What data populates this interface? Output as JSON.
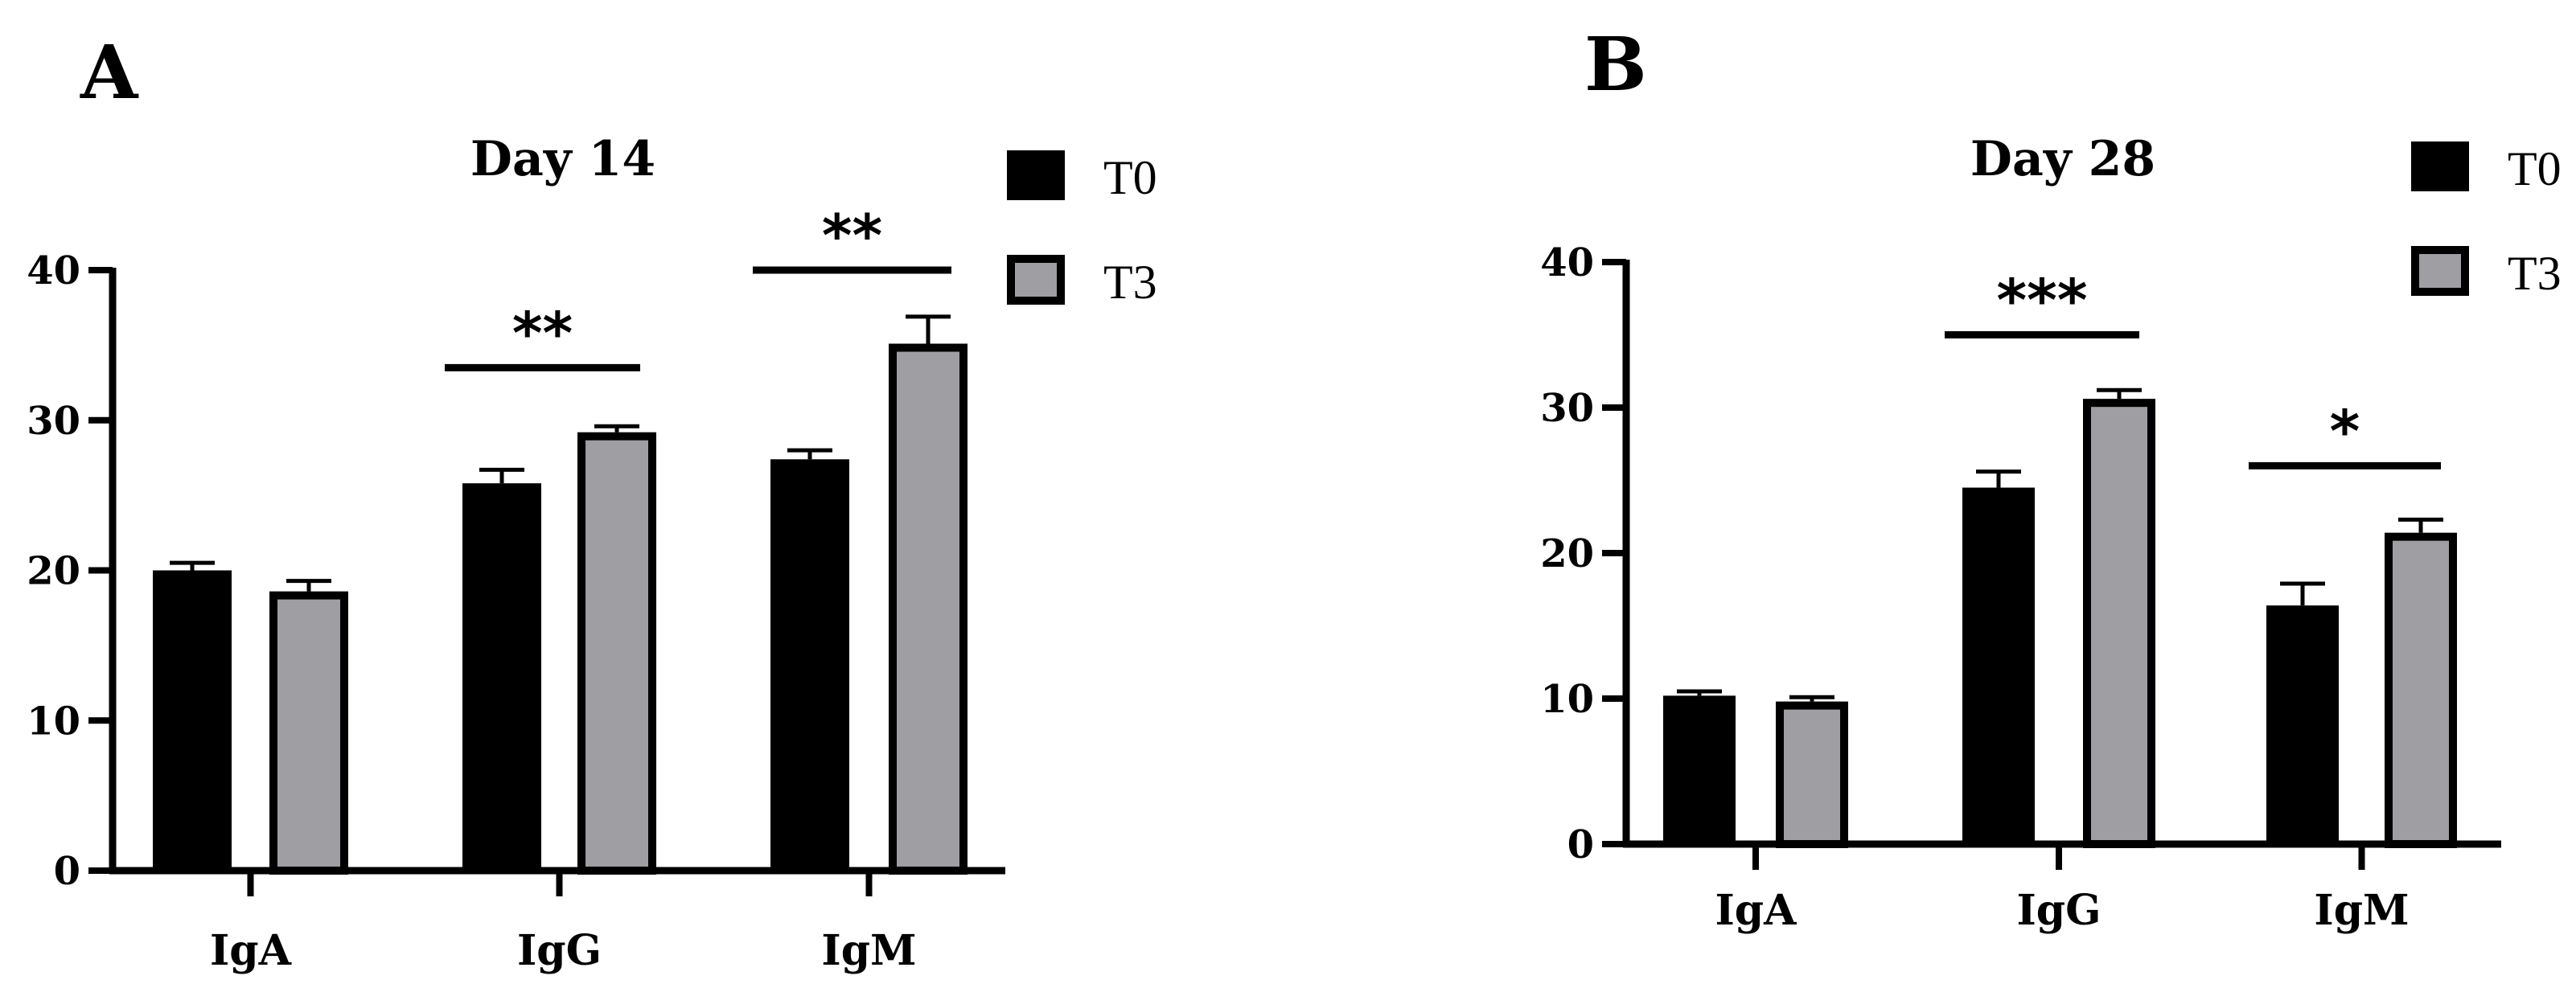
{
  "colors": {
    "T0": "#000000",
    "T3": "#9e9ea3",
    "outline": "#000000"
  },
  "chart_data": [
    {
      "panel": "A",
      "type": "bar",
      "title": "Day 14",
      "categories": [
        "IgA",
        "IgG",
        "IgM"
      ],
      "ylim": [
        0,
        40
      ],
      "yticks": [
        0,
        10,
        20,
        30,
        40
      ],
      "legend_position": "top-right",
      "series": [
        {
          "name": "T0",
          "values": [
            20.0,
            25.8,
            27.4
          ],
          "errors": [
            0.5,
            0.9,
            0.6
          ]
        },
        {
          "name": "T3",
          "values": [
            18.6,
            29.2,
            35.1
          ],
          "errors": [
            0.7,
            0.4,
            1.8
          ]
        }
      ],
      "significance": [
        {
          "category": "IgG",
          "label": "**",
          "y": 33.5
        },
        {
          "category": "IgM",
          "label": "**",
          "y": 40.0
        }
      ]
    },
    {
      "panel": "B",
      "type": "bar",
      "title": "Day 28",
      "categories": [
        "IgA",
        "IgG",
        "IgM"
      ],
      "ylim": [
        0,
        40
      ],
      "yticks": [
        0,
        10,
        20,
        30,
        40
      ],
      "legend_position": "top-right",
      "series": [
        {
          "name": "T0",
          "values": [
            10.2,
            24.5,
            16.4
          ],
          "errors": [
            0.3,
            1.1,
            1.5
          ]
        },
        {
          "name": "T3",
          "values": [
            9.8,
            30.6,
            21.4
          ],
          "errors": [
            0.3,
            0.6,
            0.9
          ]
        }
      ],
      "significance": [
        {
          "category": "IgG",
          "label": "***",
          "y": 35.0
        },
        {
          "category": "IgM",
          "label": "*",
          "y": 26.0
        }
      ]
    }
  ]
}
